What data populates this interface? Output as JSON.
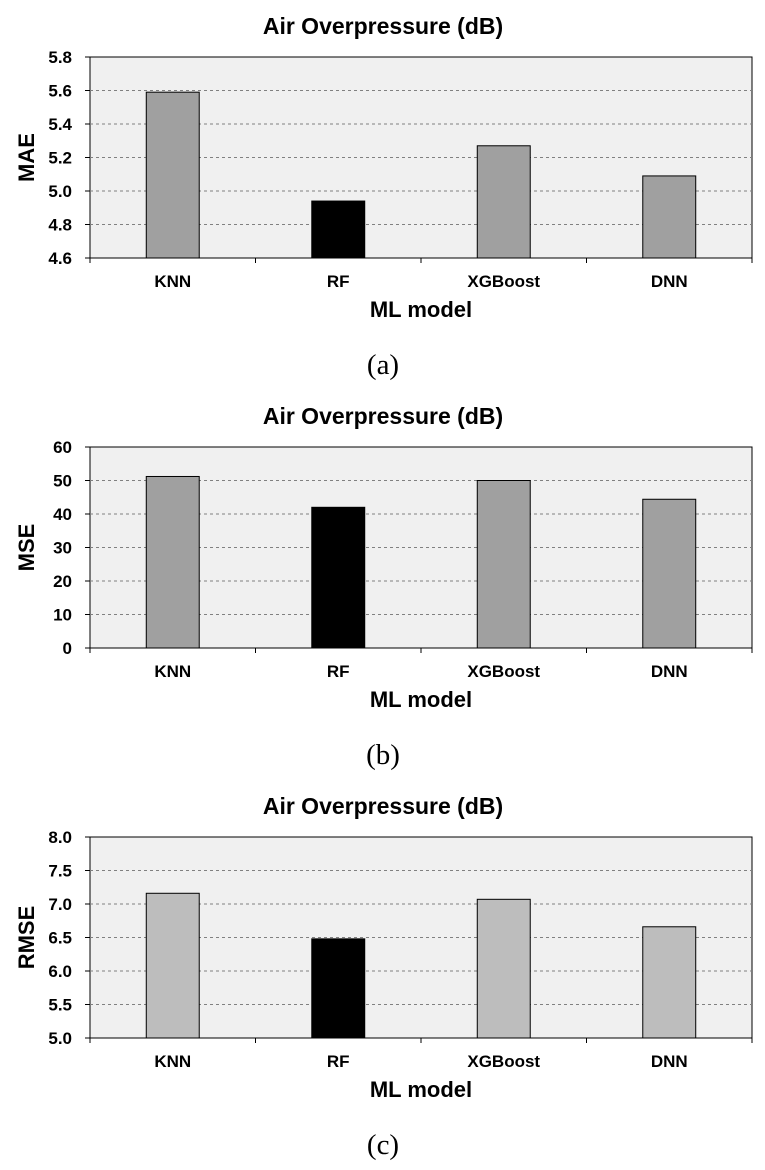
{
  "chart_data": [
    {
      "type": "bar",
      "title": "Air Overpressure (dB)",
      "xlabel": "ML model",
      "ylabel": "MAE",
      "categories": [
        "KNN",
        "RF",
        "XGBoost",
        "DNN"
      ],
      "values": [
        5.59,
        4.94,
        5.27,
        5.09
      ],
      "ylim": [
        4.6,
        5.8
      ],
      "yticks": [
        "4.6",
        "4.8",
        "5.0",
        "5.2",
        "5.4",
        "5.6",
        "5.8"
      ],
      "grid": true,
      "bar_colors": [
        "#a0a0a0",
        "#000000",
        "#a0a0a0",
        "#a0a0a0"
      ],
      "plot_background": "#f0f0f0",
      "caption": "(a)"
    },
    {
      "type": "bar",
      "title": "Air Overpressure (dB)",
      "xlabel": "ML model",
      "ylabel": "MSE",
      "categories": [
        "KNN",
        "RF",
        "XGBoost",
        "DNN"
      ],
      "values": [
        51.2,
        42.0,
        50.0,
        44.4
      ],
      "ylim": [
        0,
        60
      ],
      "yticks": [
        "0",
        "10",
        "20",
        "30",
        "40",
        "50",
        "60"
      ],
      "grid": true,
      "bar_colors": [
        "#a0a0a0",
        "#000000",
        "#a0a0a0",
        "#a0a0a0"
      ],
      "plot_background": "#f0f0f0",
      "caption": "(b)"
    },
    {
      "type": "bar",
      "title": "Air Overpressure (dB)",
      "xlabel": "ML model",
      "ylabel": "RMSE",
      "categories": [
        "KNN",
        "RF",
        "XGBoost",
        "DNN"
      ],
      "values": [
        7.16,
        6.48,
        7.07,
        6.66
      ],
      "ylim": [
        5.0,
        8.0
      ],
      "yticks": [
        "5.0",
        "5.5",
        "6.0",
        "6.5",
        "7.0",
        "7.5",
        "8.0"
      ],
      "grid": true,
      "bar_colors": [
        "#bdbdbd",
        "#000000",
        "#bdbdbd",
        "#bdbdbd"
      ],
      "plot_background": "#f0f0f0",
      "caption": "(c)"
    }
  ]
}
